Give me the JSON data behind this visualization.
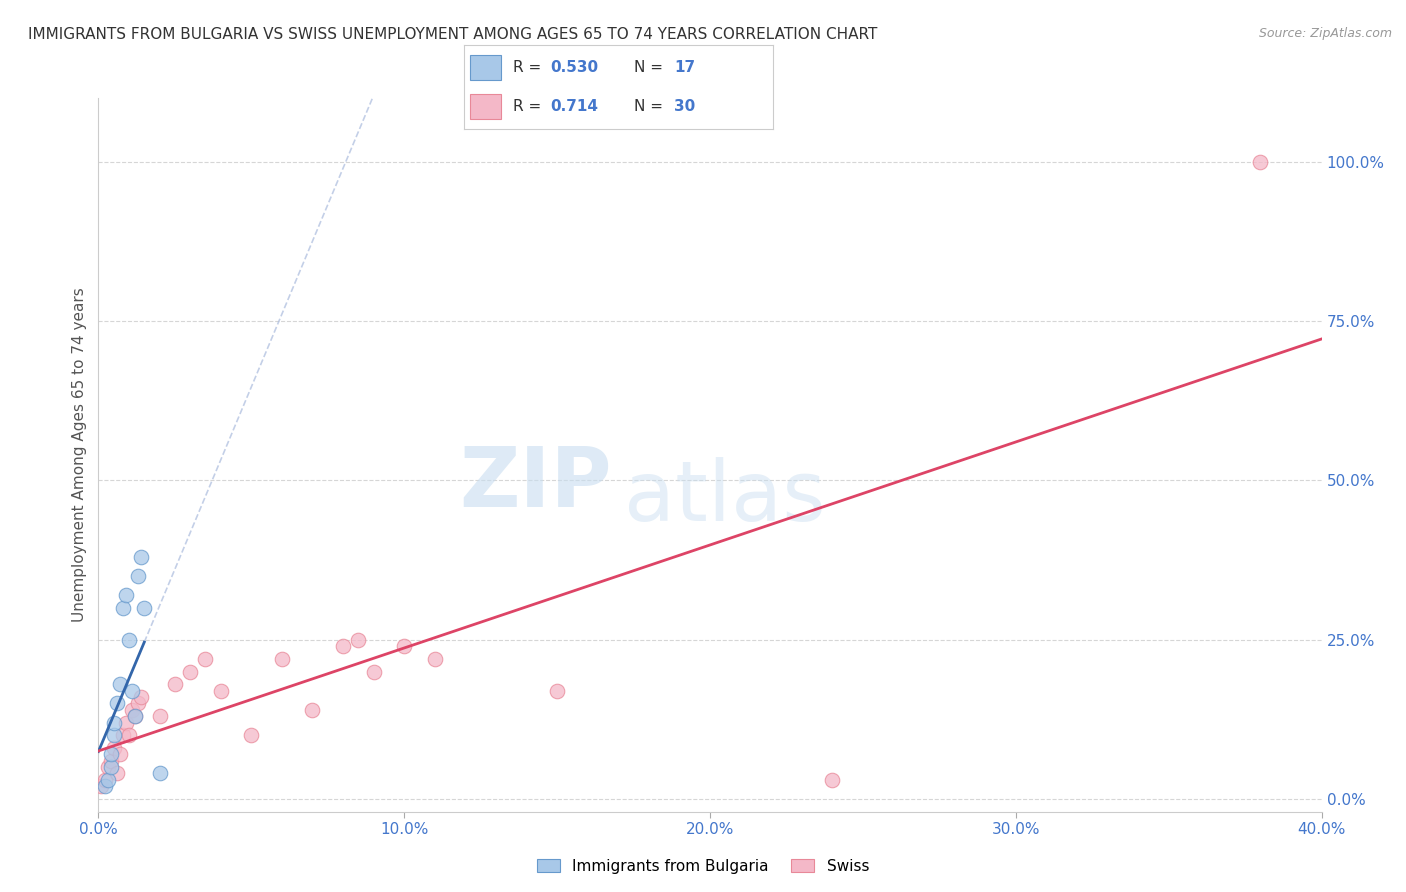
{
  "title": "IMMIGRANTS FROM BULGARIA VS SWISS UNEMPLOYMENT AMONG AGES 65 TO 74 YEARS CORRELATION CHART",
  "source": "Source: ZipAtlas.com",
  "ylabel": "Unemployment Among Ages 65 to 74 years",
  "xlim": [
    0.0,
    0.4
  ],
  "ylim": [
    -0.02,
    1.1
  ],
  "xticks": [
    0.0,
    0.1,
    0.2,
    0.3,
    0.4
  ],
  "xticklabels": [
    "0.0%",
    "10.0%",
    "20.0%",
    "30.0%",
    "40.0%"
  ],
  "yticks_right": [
    0.0,
    0.25,
    0.5,
    0.75,
    1.0
  ],
  "yticklabels_right": [
    "0.0%",
    "25.0%",
    "50.0%",
    "75.0%",
    "100.0%"
  ],
  "legend_blue_r": "0.530",
  "legend_blue_n": "17",
  "legend_pink_r": "0.714",
  "legend_pink_n": "30",
  "legend_label_blue": "Immigrants from Bulgaria",
  "legend_label_pink": "Swiss",
  "watermark_zip": "ZIP",
  "watermark_atlas": "atlas",
  "blue_color": "#a8c8e8",
  "blue_edge_color": "#6699cc",
  "pink_color": "#f4b8c8",
  "pink_edge_color": "#e88898",
  "blue_line_color": "#3366aa",
  "pink_line_color": "#dd4466",
  "blue_scatter_x": [
    0.002,
    0.003,
    0.004,
    0.004,
    0.005,
    0.005,
    0.006,
    0.007,
    0.008,
    0.009,
    0.01,
    0.011,
    0.012,
    0.013,
    0.014,
    0.015,
    0.02
  ],
  "blue_scatter_y": [
    0.02,
    0.03,
    0.05,
    0.07,
    0.1,
    0.12,
    0.15,
    0.18,
    0.3,
    0.32,
    0.25,
    0.17,
    0.13,
    0.35,
    0.38,
    0.3,
    0.04
  ],
  "pink_scatter_x": [
    0.001,
    0.002,
    0.003,
    0.004,
    0.005,
    0.006,
    0.007,
    0.008,
    0.009,
    0.01,
    0.011,
    0.012,
    0.013,
    0.014,
    0.02,
    0.025,
    0.03,
    0.035,
    0.04,
    0.05,
    0.06,
    0.07,
    0.08,
    0.085,
    0.09,
    0.1,
    0.11,
    0.15,
    0.24,
    0.38
  ],
  "pink_scatter_y": [
    0.02,
    0.03,
    0.05,
    0.06,
    0.08,
    0.04,
    0.07,
    0.1,
    0.12,
    0.1,
    0.14,
    0.13,
    0.15,
    0.16,
    0.13,
    0.18,
    0.2,
    0.22,
    0.17,
    0.1,
    0.22,
    0.14,
    0.24,
    0.25,
    0.2,
    0.24,
    0.22,
    0.17,
    0.03,
    1.0
  ],
  "title_fontsize": 11,
  "axis_label_fontsize": 11,
  "tick_fontsize": 11,
  "background_color": "#ffffff",
  "grid_color": "#cccccc"
}
